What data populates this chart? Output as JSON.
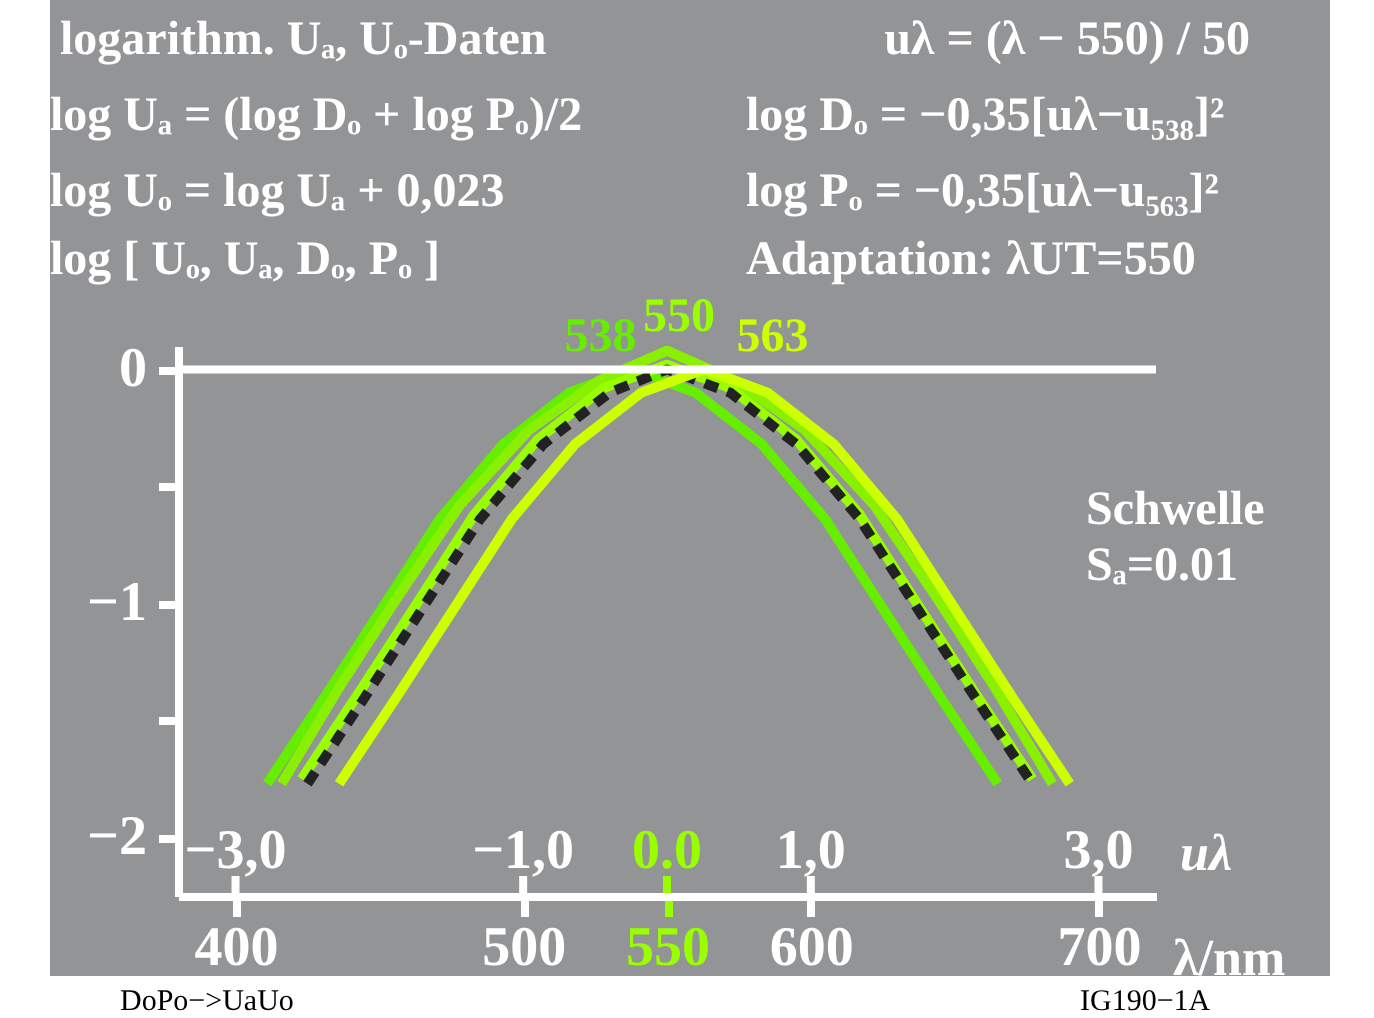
{
  "chart_data": {
    "type": "line",
    "xlabel": "λ/nm",
    "x2label": "uλ",
    "xlim": [
      380,
      720
    ],
    "xticks": [
      400,
      500,
      550,
      600,
      700
    ],
    "x2lim": [
      -3.4,
      3.4
    ],
    "x2ticks": [
      {
        "value": -3,
        "label": "−3,0"
      },
      {
        "value": -1,
        "label": "−1,0"
      },
      {
        "value": 0,
        "label": "0.0"
      },
      {
        "value": 1,
        "label": "1,0"
      },
      {
        "value": 3,
        "label": "3,0"
      }
    ],
    "ylim": [
      -2.25,
      0.1
    ],
    "yticks": [
      {
        "value": 0,
        "label": "0"
      },
      {
        "value": -0.5,
        "label": null
      },
      {
        "value": -1,
        "label": "−1"
      },
      {
        "value": -1.5,
        "label": null
      },
      {
        "value": -2,
        "label": "−2"
      }
    ],
    "grid": false,
    "marker": "none",
    "ref_lines": [
      {
        "axis": "y",
        "value": 0,
        "color": "#ffffff"
      }
    ],
    "series": [
      {
        "color": "#66ee00",
        "line_style": "solid",
        "x": [
          411,
          431,
          450,
          471,
          493,
          516,
          538,
          560,
          583,
          605,
          626,
          645,
          665
        ],
        "values": [
          -1.77,
          -1.4,
          -1.04,
          -0.64,
          -0.32,
          -0.1,
          0.0,
          -0.1,
          -0.32,
          -0.64,
          -1.04,
          -1.4,
          -1.77
        ]
      },
      {
        "color": "#88f000",
        "line_style": "solid",
        "x": [
          416,
          436,
          456,
          478,
          502,
          526,
          550,
          574,
          598,
          622,
          644,
          664,
          684
        ],
        "values": [
          -1.77,
          -1.36,
          -0.98,
          -0.58,
          -0.26,
          -0.05,
          0.08,
          -0.05,
          -0.26,
          -0.58,
          -0.98,
          -1.36,
          -1.77
        ]
      },
      {
        "color": "#99ff00",
        "line_style": "solid",
        "x": [
          423,
          443,
          462,
          483,
          505,
          528,
          550,
          572,
          595,
          617,
          638,
          657,
          677
        ],
        "values": [
          -1.75,
          -1.38,
          -1.02,
          -0.62,
          -0.3,
          -0.08,
          0.02,
          -0.08,
          -0.3,
          -0.62,
          -1.02,
          -1.38,
          -1.75
        ]
      },
      {
        "color": "#222222",
        "line_style": "dashed",
        "x": [
          425,
          445,
          464,
          485,
          507,
          530,
          550,
          572,
          595,
          617,
          638,
          657,
          677
        ],
        "values": [
          -1.77,
          -1.4,
          -1.04,
          -0.64,
          -0.32,
          -0.1,
          0.0,
          -0.1,
          -0.32,
          -0.64,
          -1.04,
          -1.4,
          -1.77
        ]
      },
      {
        "color": "#ccff00",
        "line_style": "solid",
        "x": [
          436,
          456,
          475,
          496,
          518,
          541,
          563,
          585,
          608,
          630,
          651,
          670,
          690
        ],
        "values": [
          -1.77,
          -1.4,
          -1.04,
          -0.64,
          -0.32,
          -0.1,
          0.0,
          -0.1,
          -0.32,
          -0.64,
          -1.04,
          -1.4,
          -1.77
        ]
      }
    ],
    "annotations": [
      "logarithm. Uₐ, Uₒ-Daten",
      "uλ = (λ − 550) / 50",
      "log Uₐ = (log Dₒ + log Pₒ)/2",
      "log Dₒ = −0,35[uλ−u₅₃₈]²",
      "log Uₒ = log Uₐ + 0,023",
      "log Pₒ = −0,35[uλ−u₅₆₃]²",
      "log [ Uₒ, Uₐ, Dₒ, Pₒ ]",
      "Adaptation: λUT=550",
      "Schwelle",
      "Sₐ=0.01",
      "DoPo−>UaUo",
      "IG190−1A",
      {
        "text": "538",
        "x": 538,
        "y": 0
      },
      {
        "text": "550",
        "x": 550,
        "y": 0
      },
      {
        "text": "563",
        "x": 563,
        "y": 0
      }
    ]
  }
}
